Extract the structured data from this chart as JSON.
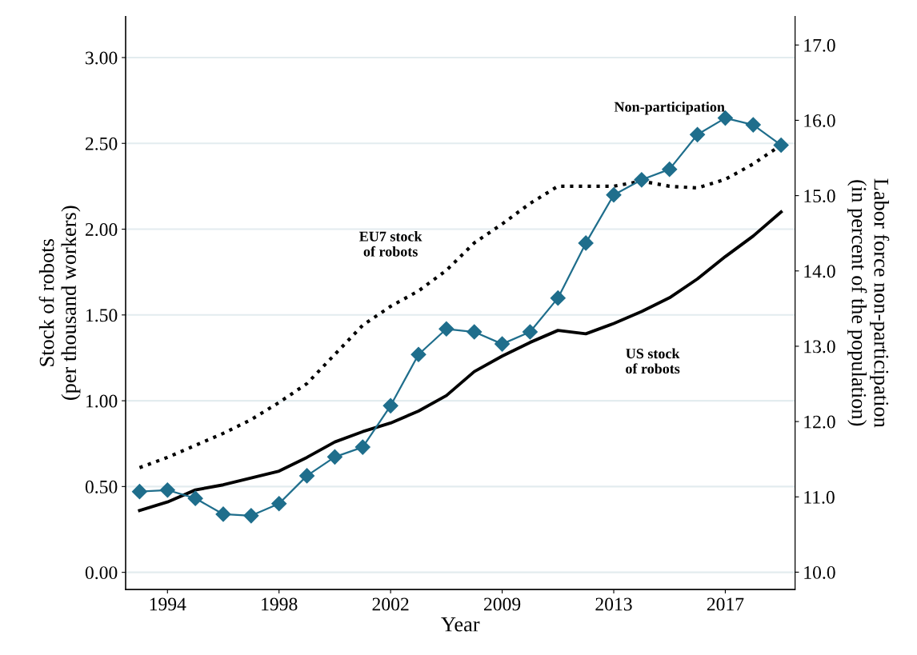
{
  "chart_data": {
    "type": "line",
    "xlabel": "Year",
    "ylabel": "Stock of robots\n(per thousand workers)",
    "y2label": "Labor force non-participation\n(in percent of the population)",
    "categories": [
      null,
      "1994",
      null,
      null,
      null,
      "1998",
      null,
      null,
      null,
      "2002",
      null,
      null,
      null,
      "2009",
      null,
      null,
      null,
      "2013",
      null,
      null,
      null,
      "2017",
      null,
      null
    ],
    "series": [
      {
        "name": "EU7 stock\nof robots",
        "color": "#000000",
        "line_style": "dotted",
        "marker": "none",
        "values": [
          0.61,
          0.67,
          0.74,
          0.81,
          0.89,
          0.99,
          1.1,
          1.27,
          1.44,
          1.55,
          1.64,
          1.76,
          1.92,
          2.03,
          2.15,
          2.25,
          2.25,
          2.25,
          2.28,
          2.25,
          2.24,
          2.29,
          2.38,
          2.49
        ]
      },
      {
        "name": "US stock\nof robots",
        "color": "#000000",
        "line_style": "solid",
        "marker": "none",
        "values": [
          0.36,
          0.41,
          0.48,
          0.51,
          0.55,
          0.59,
          0.67,
          0.76,
          0.82,
          0.87,
          0.94,
          1.03,
          1.17,
          1.26,
          1.34,
          1.41,
          1.39,
          1.45,
          1.52,
          1.6,
          1.71,
          1.84,
          1.96,
          2.1
        ]
      },
      {
        "name": "Non-participation",
        "color": "#1f6e8c",
        "line_style": "solid",
        "marker": "diamond",
        "axis": "y2",
        "values": [
          11.07,
          11.09,
          10.98,
          10.77,
          10.75,
          10.91,
          11.28,
          11.53,
          11.66,
          12.21,
          12.89,
          13.23,
          13.19,
          13.03,
          13.19,
          13.64,
          14.37,
          15.01,
          15.21,
          15.35,
          15.81,
          16.03,
          15.94,
          15.67
        ]
      }
    ],
    "ylim": [
      -0.1,
      3.24
    ],
    "yticks": [
      {
        "value": 0,
        "label": "0.00"
      },
      {
        "value": 0.5,
        "label": "0.50"
      },
      {
        "value": 1,
        "label": "1.00"
      },
      {
        "value": 1.5,
        "label": "1.50"
      },
      {
        "value": 2,
        "label": "2.00"
      },
      {
        "value": 2.5,
        "label": "2.50"
      },
      {
        "value": 3,
        "label": "3.00"
      }
    ],
    "y2lim": [
      9.77,
      17.38
    ],
    "y2ticks": [
      {
        "value": 10,
        "label": "10.0"
      },
      {
        "value": 11,
        "label": "11.0"
      },
      {
        "value": 12,
        "label": "12.0"
      },
      {
        "value": 13,
        "label": "13.0"
      },
      {
        "value": 14,
        "label": "14.0"
      },
      {
        "value": 15,
        "label": "15.0"
      },
      {
        "value": 16,
        "label": "16.0"
      },
      {
        "value": 17,
        "label": "17.0"
      }
    ],
    "grid": "y",
    "legend": false
  }
}
